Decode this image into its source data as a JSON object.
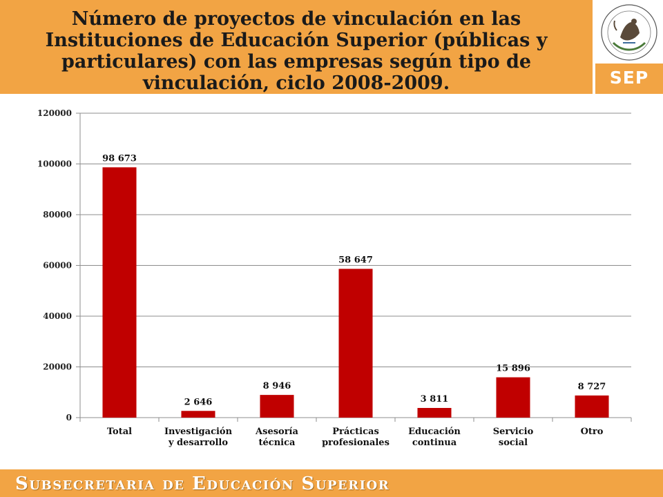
{
  "header": {
    "title": "Número de proyectos de vinculación en las Instituciones de Educación Superior (públicas y particulares) con las empresas según tipo de vinculación, ciclo 2008-2009.",
    "logo_text": "SEP",
    "seal_text": "ESTADOS UNIDOS MEXICANOS"
  },
  "footer": {
    "text": "Subsecretaria de Educación Superior"
  },
  "colors": {
    "accent": "#f2a444",
    "bar": "#c00000"
  },
  "chart_data": {
    "type": "bar",
    "categories": [
      [
        "Total"
      ],
      [
        "Investigación",
        "y desarrollo"
      ],
      [
        "Asesoría",
        "técnica"
      ],
      [
        "Prácticas",
        "profesionales"
      ],
      [
        "Educación",
        "continua"
      ],
      [
        "Servicio",
        "social"
      ],
      [
        "Otro"
      ]
    ],
    "values": [
      98673,
      2646,
      8946,
      58647,
      3811,
      15896,
      8727
    ],
    "data_labels": [
      "98 673",
      "2 646",
      "8 946",
      "58 647",
      "3 811",
      "15 896",
      "8 727"
    ],
    "yticks": [
      0,
      20000,
      40000,
      60000,
      80000,
      100000,
      120000
    ],
    "ytick_labels": [
      "0",
      "20000",
      "40000",
      "60000",
      "80000",
      "100000",
      "120000"
    ],
    "ylim": [
      0,
      120000
    ],
    "grid": true,
    "legend": "none"
  }
}
